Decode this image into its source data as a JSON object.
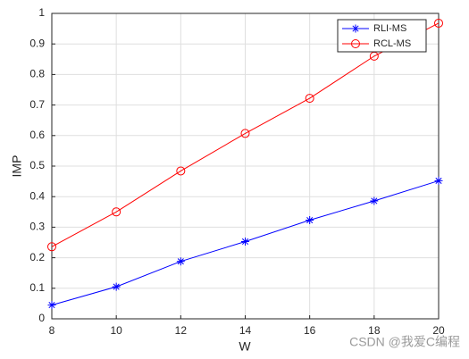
{
  "chart_data": {
    "type": "line",
    "xlabel": "W",
    "ylabel": "IMP",
    "x": [
      8,
      10,
      12,
      14,
      16,
      18,
      20
    ],
    "series": [
      {
        "name": "RLI-MS",
        "color": "#0000ff",
        "marker": "asterisk",
        "values": [
          0.045,
          0.105,
          0.188,
          0.253,
          0.323,
          0.386,
          0.452
        ]
      },
      {
        "name": "RCL-MS",
        "color": "#ff0000",
        "marker": "circle",
        "values": [
          0.236,
          0.35,
          0.484,
          0.607,
          0.722,
          0.86,
          0.968
        ]
      }
    ],
    "xlim": [
      8,
      20
    ],
    "xticks": [
      8,
      10,
      12,
      14,
      16,
      18,
      20
    ],
    "ylim": [
      0,
      1
    ],
    "yticks": [
      0,
      0.1,
      0.2,
      0.3,
      0.4,
      0.5,
      0.6,
      0.7,
      0.8,
      0.9,
      1
    ],
    "grid": true,
    "legend": "top-right",
    "watermark": "CSDN @我爱C编程"
  }
}
